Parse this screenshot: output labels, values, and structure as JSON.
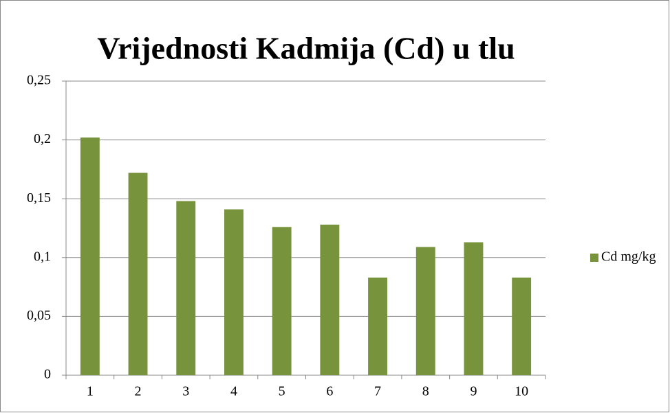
{
  "chart_data": {
    "type": "bar",
    "title": "Vrijednosti Kadmija (Cd) u tlu",
    "categories": [
      "1",
      "2",
      "3",
      "4",
      "5",
      "6",
      "7",
      "8",
      "9",
      "10"
    ],
    "series": [
      {
        "name": "Cd mg/kg",
        "color": "#77933c",
        "values": [
          0.202,
          0.172,
          0.148,
          0.141,
          0.126,
          0.128,
          0.083,
          0.109,
          0.113,
          0.083
        ]
      }
    ],
    "ylim": [
      0,
      0.25
    ],
    "yticks": [
      0,
      {
        "value": 0.05,
        "label": "0,05"
      },
      {
        "value": 0.1,
        "label": "0,1"
      },
      {
        "value": 0.15,
        "label": "0,15"
      },
      {
        "value": 0.2,
        "label": "0,2"
      },
      {
        "value": 0.25,
        "label": "0,25"
      }
    ],
    "grid": true,
    "legend": "right"
  }
}
